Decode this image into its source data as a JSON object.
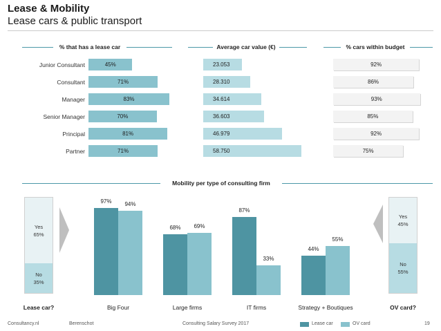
{
  "header": {
    "title": "Lease & Mobility",
    "subtitle": "Lease cars & public transport"
  },
  "colors": {
    "lease_car": "#4e94a2",
    "ov_card": "#89c2cd",
    "lease_light": "#89c2cd",
    "car_value_light": "#b7dce3",
    "budget_bar": "#f3f3f3",
    "line": "#4a97a7",
    "arrow": "#bfbfbf"
  },
  "top_chart": {
    "headers": {
      "lease": "% that has a lease car",
      "car_value": "Average car value (€)",
      "budget": "% cars within budget"
    },
    "rows": [
      {
        "label": "Junior Consultant",
        "lease_pct": 45,
        "lease_text": "45%",
        "car_value": 23053,
        "car_value_text": "23.053",
        "budget_pct": 92,
        "budget_text": "92%"
      },
      {
        "label": "Consultant",
        "lease_pct": 71,
        "lease_text": "71%",
        "car_value": 28310,
        "car_value_text": "28.310",
        "budget_pct": 86,
        "budget_text": "86%"
      },
      {
        "label": "Manager",
        "lease_pct": 83,
        "lease_text": "83%",
        "car_value": 34614,
        "car_value_text": "34.614",
        "budget_pct": 93,
        "budget_text": "93%"
      },
      {
        "label": "Senior Manager",
        "lease_pct": 70,
        "lease_text": "70%",
        "car_value": 36603,
        "car_value_text": "36.603",
        "budget_pct": 85,
        "budget_text": "85%"
      },
      {
        "label": "Principal",
        "lease_pct": 81,
        "lease_text": "81%",
        "car_value": 46979,
        "car_value_text": "46.979",
        "budget_pct": 92,
        "budget_text": "92%"
      },
      {
        "label": "Partner",
        "lease_pct": 71,
        "lease_text": "71%",
        "car_value": 58750,
        "car_value_text": "58.750",
        "budget_pct": 75,
        "budget_text": "75%"
      }
    ]
  },
  "chart_data": [
    {
      "type": "bar",
      "orientation": "horizontal",
      "title": "% that has a lease car",
      "categories": [
        "Junior Consultant",
        "Consultant",
        "Manager",
        "Senior Manager",
        "Principal",
        "Partner"
      ],
      "values": [
        45,
        71,
        83,
        70,
        81,
        71
      ],
      "unit": "%"
    },
    {
      "type": "bar",
      "orientation": "horizontal",
      "title": "Average car value (€)",
      "categories": [
        "Junior Consultant",
        "Consultant",
        "Manager",
        "Senior Manager",
        "Principal",
        "Partner"
      ],
      "values": [
        23053,
        28310,
        34614,
        36603,
        46979,
        58750
      ],
      "unit": "€"
    },
    {
      "type": "bar",
      "orientation": "horizontal",
      "title": "% cars within budget",
      "categories": [
        "Junior Consultant",
        "Consultant",
        "Manager",
        "Senior Manager",
        "Principal",
        "Partner"
      ],
      "values": [
        92,
        86,
        93,
        85,
        92,
        75
      ],
      "unit": "%"
    },
    {
      "type": "bar",
      "title": "Mobility per type of consulting firm",
      "categories": [
        "Big Four",
        "Large firms",
        "IT firms",
        "Strategy + Boutiques"
      ],
      "series": [
        {
          "name": "Lease car",
          "values": [
            97,
            68,
            87,
            44
          ],
          "labels": [
            "97%",
            "68%",
            "87%",
            "44%"
          ]
        },
        {
          "name": "OV card",
          "values": [
            94,
            69,
            33,
            55
          ],
          "labels": [
            "94%",
            "69%",
            "33%",
            "55%"
          ]
        }
      ],
      "ylim": [
        0,
        100
      ],
      "legend": "bottom-right"
    },
    {
      "type": "bar",
      "stacked": true,
      "title": "Lease car?",
      "segments": [
        {
          "name": "Yes",
          "value": 65,
          "label": "65%"
        },
        {
          "name": "No",
          "value": 35,
          "label": "35%"
        }
      ]
    },
    {
      "type": "bar",
      "stacked": true,
      "title": "OV card?",
      "segments": [
        {
          "name": "Yes",
          "value": 45,
          "label": "45%"
        },
        {
          "name": "No",
          "value": 55,
          "label": "55%"
        }
      ]
    }
  ],
  "mobility": {
    "title": "Mobility per type of consulting firm",
    "lease_box": {
      "title": "Lease car?",
      "yes_label": "Yes",
      "yes_value": "65%",
      "no_label": "No",
      "no_value": "35%"
    },
    "ov_box": {
      "title": "OV card?",
      "yes_label": "Yes",
      "yes_value": "45%",
      "no_label": "No",
      "no_value": "55%"
    }
  },
  "footer": {
    "site": "Consultancy.nl",
    "partner": "Berenschot",
    "survey": "Consulting Salary Survey 2017",
    "legend_lease": "Lease car",
    "legend_ov": "OV card",
    "page": "19"
  }
}
